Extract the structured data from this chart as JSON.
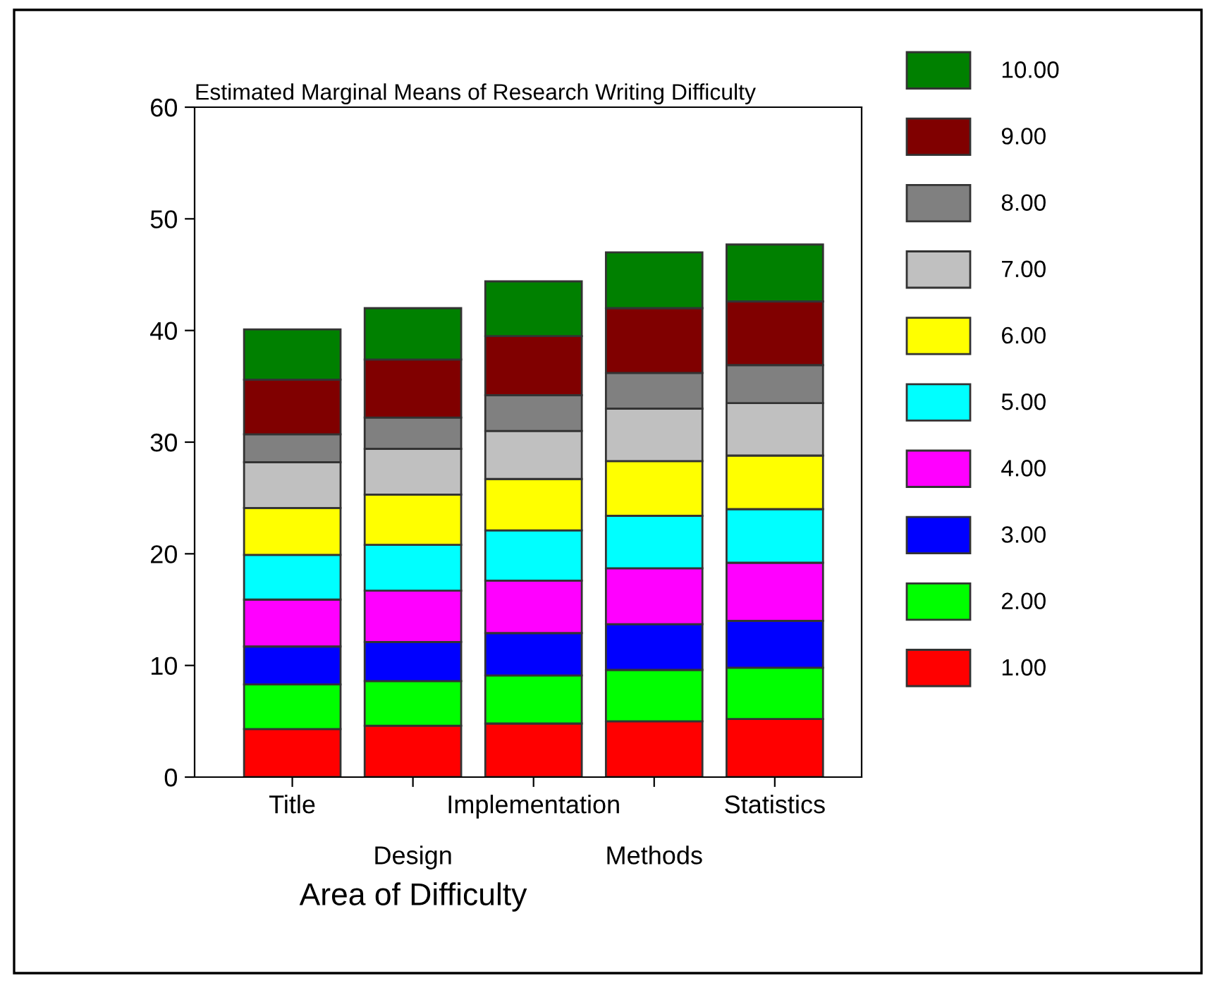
{
  "chart_data": {
    "type": "bar",
    "stacked": true,
    "title": "Estimated Marginal Means of Research Writing Difficulty",
    "xlabel": "Area of Difficulty",
    "categories": [
      "Title",
      "Design",
      "Implementation",
      "Methods",
      "Statistics"
    ],
    "series": [
      {
        "name": "1.00",
        "color": "#ff0000",
        "values": [
          4.3,
          4.6,
          4.8,
          5.0,
          5.2
        ]
      },
      {
        "name": "2.00",
        "color": "#00ff00",
        "values": [
          4.0,
          4.0,
          4.3,
          4.6,
          4.6
        ]
      },
      {
        "name": "3.00",
        "color": "#0000ff",
        "values": [
          3.4,
          3.5,
          3.8,
          4.1,
          4.2
        ]
      },
      {
        "name": "4.00",
        "color": "#ff00ff",
        "values": [
          4.2,
          4.6,
          4.7,
          5.0,
          5.2
        ]
      },
      {
        "name": "5.00",
        "color": "#00ffff",
        "values": [
          4.0,
          4.1,
          4.5,
          4.7,
          4.8
        ]
      },
      {
        "name": "6.00",
        "color": "#ffff00",
        "values": [
          4.2,
          4.5,
          4.6,
          4.9,
          4.8
        ]
      },
      {
        "name": "7.00",
        "color": "#c0c0c0",
        "values": [
          4.1,
          4.1,
          4.3,
          4.7,
          4.7
        ]
      },
      {
        "name": "8.00",
        "color": "#808080",
        "values": [
          2.5,
          2.8,
          3.2,
          3.2,
          3.4
        ]
      },
      {
        "name": "9.00",
        "color": "#800000",
        "values": [
          4.9,
          5.2,
          5.3,
          5.8,
          5.7
        ]
      },
      {
        "name": "10.00",
        "color": "#008000",
        "values": [
          4.5,
          4.6,
          4.9,
          5.0,
          5.1
        ]
      }
    ],
    "ylim": [
      0,
      60
    ],
    "yticks": [
      0,
      10,
      20,
      30,
      40,
      50,
      60
    ],
    "grid": false,
    "legend": "right"
  }
}
